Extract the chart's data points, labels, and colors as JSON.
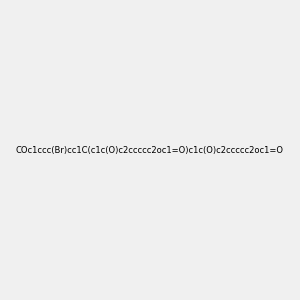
{
  "smiles": "COc1ccc(Br)cc1C(c1c(O)c2ccccc2oc1=O)c1c(O)c2ccccc2oc1=O",
  "image_size": 300,
  "background_color": "#f0f0f0",
  "title": ""
}
